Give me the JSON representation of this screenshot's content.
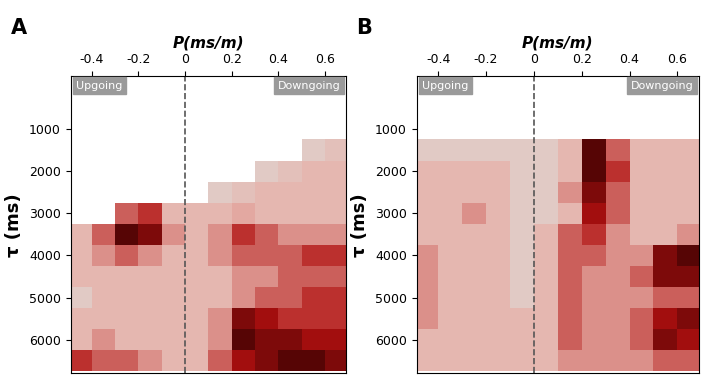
{
  "chart_data": [
    {
      "type": "heatmap",
      "panel": "A",
      "xlabel": "P(ms/m)",
      "ylabel": "τ (ms)",
      "annotations": [
        "Upgoing",
        "Downgoing"
      ],
      "vline": 0,
      "xlim": [
        -0.49,
        0.69
      ],
      "ylim": [
        6800,
        -250
      ],
      "xticks": [
        -0.4,
        -0.2,
        0,
        0.2,
        0.4,
        0.6
      ],
      "yticks": [
        1000,
        2000,
        3000,
        4000,
        5000,
        6000
      ],
      "zlim": [
        0,
        1
      ],
      "x": [
        -0.45,
        -0.35,
        -0.25,
        -0.15,
        -0.05,
        0.05,
        0.15,
        0.25,
        0.35,
        0.45,
        0.55,
        0.65
      ],
      "y": [
        0,
        500,
        1000,
        1500,
        2000,
        2500,
        3000,
        3500,
        4000,
        4500,
        5000,
        5500,
        6000,
        6500
      ],
      "values": [
        [
          null,
          null,
          null,
          null,
          null,
          null,
          null,
          null,
          null,
          null,
          null,
          null
        ],
        [
          null,
          null,
          null,
          null,
          null,
          null,
          null,
          null,
          null,
          null,
          null,
          null
        ],
        [
          null,
          null,
          null,
          null,
          null,
          null,
          null,
          null,
          null,
          null,
          null,
          null
        ],
        [
          null,
          null,
          null,
          null,
          null,
          null,
          null,
          null,
          null,
          null,
          0.2,
          0.25
        ],
        [
          null,
          null,
          null,
          null,
          null,
          null,
          null,
          null,
          0.2,
          0.25,
          0.3,
          0.3
        ],
        [
          null,
          null,
          null,
          null,
          null,
          null,
          0.2,
          0.25,
          0.3,
          0.3,
          0.3,
          0.3
        ],
        [
          null,
          null,
          0.5,
          0.6,
          0.3,
          0.3,
          0.3,
          0.35,
          0.3,
          0.3,
          0.3,
          0.3
        ],
        [
          0.3,
          0.5,
          0.9,
          0.8,
          0.4,
          0.3,
          0.4,
          0.6,
          0.5,
          0.4,
          0.4,
          0.4
        ],
        [
          0.3,
          0.4,
          0.5,
          0.4,
          0.3,
          0.3,
          0.4,
          0.5,
          0.5,
          0.5,
          0.6,
          0.6
        ],
        [
          0.3,
          0.3,
          0.3,
          0.3,
          0.3,
          0.3,
          0.3,
          0.4,
          0.4,
          0.5,
          0.5,
          0.5
        ],
        [
          0.2,
          0.3,
          0.3,
          0.3,
          0.3,
          0.3,
          0.3,
          0.4,
          0.5,
          0.5,
          0.6,
          0.6
        ],
        [
          0.3,
          0.3,
          0.3,
          0.3,
          0.3,
          0.3,
          0.4,
          0.8,
          0.7,
          0.6,
          0.6,
          0.6
        ],
        [
          0.3,
          0.4,
          0.3,
          0.3,
          0.3,
          0.3,
          0.4,
          0.9,
          0.8,
          0.8,
          0.7,
          0.7
        ],
        [
          0.6,
          0.5,
          0.5,
          0.4,
          0.3,
          0.3,
          0.5,
          0.7,
          0.8,
          0.9,
          0.9,
          0.8
        ]
      ]
    },
    {
      "type": "heatmap",
      "panel": "B",
      "xlabel": "P(ms/m)",
      "ylabel": "τ (ms)",
      "annotations": [
        "Upgoing",
        "Downgoing"
      ],
      "vline": 0,
      "xlim": [
        -0.49,
        0.69
      ],
      "ylim": [
        6800,
        -250
      ],
      "xticks": [
        -0.4,
        -0.2,
        0,
        0.2,
        0.4,
        0.6
      ],
      "yticks": [
        1000,
        2000,
        3000,
        4000,
        5000,
        6000
      ],
      "zlim": [
        0,
        1
      ],
      "x": [
        -0.45,
        -0.35,
        -0.25,
        -0.15,
        -0.05,
        0.05,
        0.15,
        0.25,
        0.35,
        0.45,
        0.55,
        0.65
      ],
      "y": [
        0,
        500,
        1000,
        1500,
        2000,
        2500,
        3000,
        3500,
        4000,
        4500,
        5000,
        5500,
        6000,
        6500
      ],
      "values": [
        [
          null,
          null,
          null,
          null,
          null,
          null,
          null,
          null,
          null,
          null,
          null,
          null
        ],
        [
          null,
          null,
          null,
          null,
          null,
          null,
          null,
          null,
          null,
          null,
          null,
          null
        ],
        [
          null,
          null,
          null,
          null,
          null,
          null,
          null,
          null,
          null,
          null,
          null,
          null
        ],
        [
          0.2,
          0.2,
          0.2,
          0.2,
          0.2,
          0.2,
          0.3,
          0.9,
          0.5,
          0.3,
          0.3,
          0.3
        ],
        [
          0.3,
          0.3,
          0.3,
          0.3,
          0.2,
          0.2,
          0.3,
          0.9,
          0.6,
          0.3,
          0.3,
          0.3
        ],
        [
          0.3,
          0.3,
          0.3,
          0.3,
          0.2,
          0.2,
          0.4,
          0.8,
          0.5,
          0.3,
          0.3,
          0.3
        ],
        [
          0.3,
          0.3,
          0.4,
          0.3,
          0.2,
          0.2,
          0.3,
          0.7,
          0.5,
          0.3,
          0.3,
          0.3
        ],
        [
          0.3,
          0.3,
          0.3,
          0.3,
          0.2,
          0.3,
          0.5,
          0.6,
          0.4,
          0.3,
          0.3,
          0.4
        ],
        [
          0.4,
          0.3,
          0.3,
          0.3,
          0.2,
          0.3,
          0.5,
          0.5,
          0.4,
          0.4,
          0.8,
          0.9
        ],
        [
          0.4,
          0.3,
          0.3,
          0.3,
          0.2,
          0.3,
          0.5,
          0.4,
          0.4,
          0.5,
          0.8,
          0.8
        ],
        [
          0.4,
          0.3,
          0.3,
          0.3,
          0.2,
          0.3,
          0.5,
          0.4,
          0.4,
          0.4,
          0.5,
          0.5
        ],
        [
          0.4,
          0.3,
          0.3,
          0.3,
          0.3,
          0.3,
          0.5,
          0.4,
          0.4,
          0.5,
          0.7,
          0.8
        ],
        [
          0.3,
          0.3,
          0.3,
          0.3,
          0.3,
          0.3,
          0.5,
          0.4,
          0.4,
          0.5,
          0.8,
          0.7
        ],
        [
          0.3,
          0.3,
          0.3,
          0.3,
          0.3,
          0.3,
          0.4,
          0.4,
          0.4,
          0.4,
          0.5,
          0.5
        ]
      ]
    }
  ]
}
